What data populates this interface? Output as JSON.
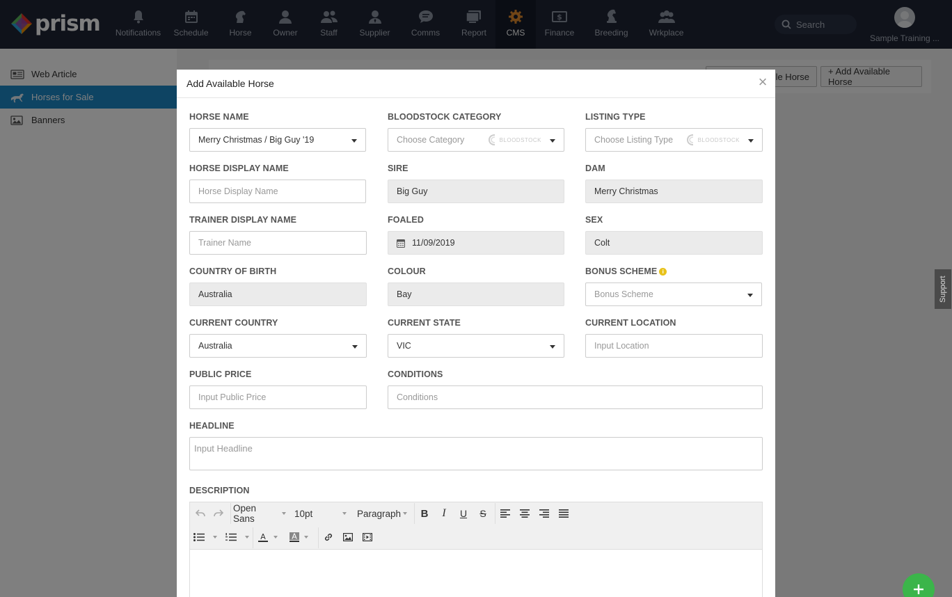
{
  "app": {
    "brand": "prism",
    "nav": [
      {
        "label": "Notifications",
        "icon": "bell-icon"
      },
      {
        "label": "Schedule",
        "icon": "calendar-icon"
      },
      {
        "label": "Horse",
        "icon": "horse-head-icon"
      },
      {
        "label": "Owner",
        "icon": "person-icon"
      },
      {
        "label": "Staff",
        "icon": "people-icon"
      },
      {
        "label": "Supplier",
        "icon": "person-tie-icon"
      },
      {
        "label": "Comms",
        "icon": "chat-icon"
      },
      {
        "label": "Report",
        "icon": "monitor-icon"
      },
      {
        "label": "CMS",
        "icon": "gear-icon",
        "active": true
      },
      {
        "label": "Finance",
        "icon": "dollar-icon"
      },
      {
        "label": "Breeding",
        "icon": "chess-knight-icon"
      },
      {
        "label": "Wrkplace",
        "icon": "team-icon"
      }
    ],
    "search_placeholder": "Search",
    "user_name": "Sample Training ..."
  },
  "sidebar": {
    "items": [
      {
        "label": "Web Article",
        "icon": "newspaper-icon"
      },
      {
        "label": "Horses for Sale",
        "icon": "horse-running-icon",
        "active": true
      },
      {
        "label": "Banners",
        "icon": "image-icon"
      }
    ]
  },
  "background_page": {
    "btn_partial": "le Horse",
    "btn_add": "+ Add Available Horse",
    "support_tab": "Support",
    "fab_label": "+"
  },
  "modal": {
    "title": "Add Available Horse",
    "close": "×",
    "fields": {
      "horse_name": {
        "label": "HORSE NAME",
        "value": "Merry Christmas / Big Guy '19"
      },
      "bloodstock_category": {
        "label": "BLOODSTOCK CATEGORY",
        "placeholder": "Choose Category",
        "logo_text": "BLOODSTOCK"
      },
      "listing_type": {
        "label": "LISTING TYPE",
        "placeholder": "Choose Listing Type",
        "logo_text": "BLOODSTOCK"
      },
      "horse_display_name": {
        "label": "HORSE DISPLAY NAME",
        "placeholder": "Horse Display Name"
      },
      "sire": {
        "label": "SIRE",
        "value": "Big Guy"
      },
      "dam": {
        "label": "DAM",
        "value": "Merry Christmas"
      },
      "trainer_display_name": {
        "label": "TRAINER DISPLAY NAME",
        "placeholder": "Trainer Name"
      },
      "foaled": {
        "label": "FOALED",
        "value": "11/09/2019"
      },
      "sex": {
        "label": "SEX",
        "value": "Colt"
      },
      "country_of_birth": {
        "label": "COUNTRY OF BIRTH",
        "value": "Australia"
      },
      "colour": {
        "label": "COLOUR",
        "value": "Bay"
      },
      "bonus_scheme": {
        "label": "BONUS SCHEME",
        "placeholder": "Bonus Scheme"
      },
      "current_country": {
        "label": "CURRENT COUNTRY",
        "value": "Australia"
      },
      "current_state": {
        "label": "CURRENT STATE",
        "value": "VIC"
      },
      "current_location": {
        "label": "CURRENT LOCATION",
        "placeholder": "Input Location"
      },
      "public_price": {
        "label": "PUBLIC PRICE",
        "placeholder": "Input Public Price"
      },
      "conditions": {
        "label": "CONDITIONS",
        "placeholder": "Conditions"
      },
      "headline": {
        "label": "HEADLINE",
        "placeholder": "Input Headline"
      },
      "description": {
        "label": "DESCRIPTION"
      }
    },
    "editor": {
      "font_family": "Open Sans",
      "font_size": "10pt",
      "block_format": "Paragraph"
    }
  },
  "colors": {
    "topbar": "#1e2535",
    "sidebar_active": "#1d88c7",
    "fab": "#3bb54a",
    "info": "#e8c21a"
  }
}
